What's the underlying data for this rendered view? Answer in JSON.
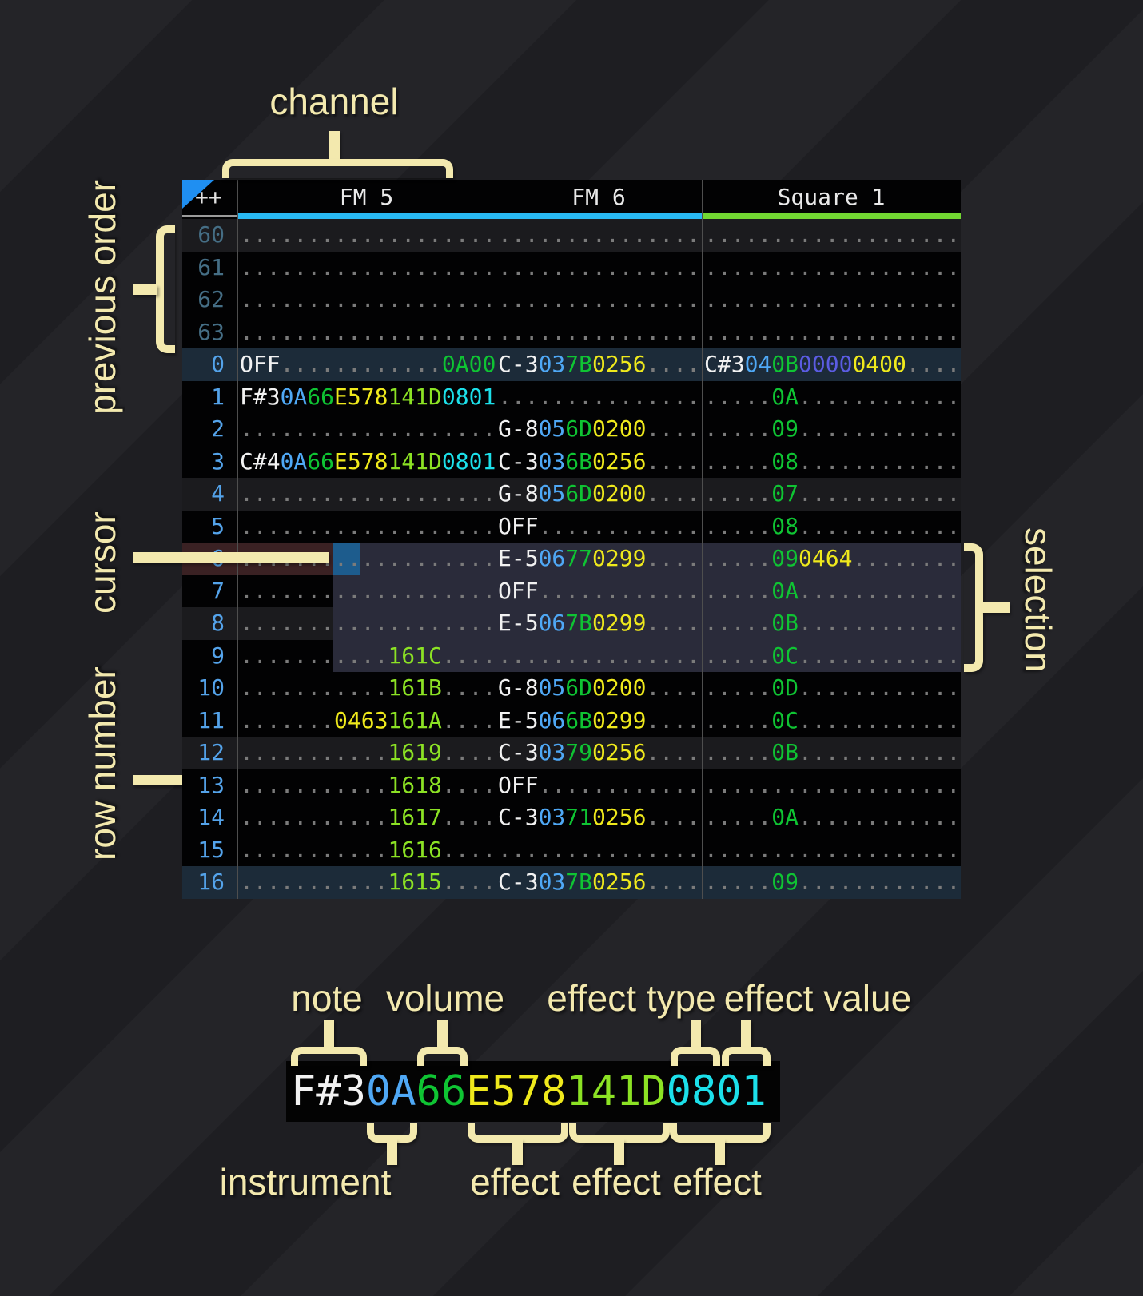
{
  "header": {
    "order_label": "++",
    "channels": [
      {
        "label": "FM 5",
        "type": "fm"
      },
      {
        "label": "FM 6",
        "type": "fm"
      },
      {
        "label": "Square 1",
        "type": "square"
      }
    ]
  },
  "state": {
    "cursor_row": "6",
    "cursor_channel": "FM 5",
    "cursor_field": "effect type",
    "selection_start_row": "6",
    "selection_end_row": "9"
  },
  "annotations": {
    "channel": "channel",
    "previous_order": "previous order",
    "cursor": "cursor",
    "row_number": "row number",
    "selection": "selection",
    "note": "note",
    "volume": "volume",
    "effect_type": "effect type",
    "effect_value": "effect value",
    "instrument": "instrument",
    "effect": "effect"
  },
  "zoom_cell": {
    "segments": [
      [
        "F#3",
        "n"
      ],
      [
        "0A",
        "i"
      ],
      [
        "66",
        "v"
      ],
      [
        "E578",
        "y"
      ],
      [
        "141D",
        "g"
      ],
      [
        "0801",
        "c"
      ]
    ]
  },
  "colors": {
    "channel_fm": "#29b9f2",
    "channel_square": "#72d732",
    "cursor": "#1d5c8d",
    "selection": "#2a2b3a",
    "cursor_row": "#3a2123",
    "row_highlight_major": "#1c2b39",
    "row_highlight_minor": "#1b1b1e",
    "annotation": "#f3e9ae",
    "note": "#f2f2f2",
    "instrument": "#4fa8f5",
    "volume": "#0fc433",
    "effect_pitch": "#efe91c",
    "effect_chip": "#8ce224",
    "effect_panning": "#1ce0ea",
    "effect_arpeggio": "#5b5ce2",
    "empty_dot": "#7b7b7b",
    "row_number_previous": "#456e85",
    "row_number_current": "#54a3ea"
  },
  "pattern": {
    "rows": [
      {
        "n": "60",
        "t": "prev",
        "hl": "weak",
        "ch": [
          [
            [
              "...................",
              "d"
            ]
          ],
          [
            [
              "...............",
              "d"
            ]
          ],
          [
            [
              "...................",
              "d"
            ]
          ]
        ]
      },
      {
        "n": "61",
        "t": "prev",
        "hl": "",
        "ch": [
          [
            [
              "...................",
              "d"
            ]
          ],
          [
            [
              "...............",
              "d"
            ]
          ],
          [
            [
              "...................",
              "d"
            ]
          ]
        ]
      },
      {
        "n": "62",
        "t": "prev",
        "hl": "",
        "ch": [
          [
            [
              "...................",
              "d"
            ]
          ],
          [
            [
              "...............",
              "d"
            ]
          ],
          [
            [
              "...................",
              "d"
            ]
          ]
        ]
      },
      {
        "n": "63",
        "t": "prev",
        "hl": "",
        "ch": [
          [
            [
              "...................",
              "d"
            ]
          ],
          [
            [
              "...............",
              "d"
            ]
          ],
          [
            [
              "...................",
              "d"
            ]
          ]
        ]
      },
      {
        "n": "0",
        "t": "cur",
        "hl": "strong",
        "ch": [
          [
            [
              "OFF",
              "n"
            ],
            [
              "............",
              "d"
            ],
            [
              "0A00",
              "v"
            ]
          ],
          [
            [
              "C-3",
              "n"
            ],
            [
              "03",
              "i"
            ],
            [
              "7B",
              "v"
            ],
            [
              "0256",
              "y"
            ],
            [
              "....",
              "d"
            ]
          ],
          [
            [
              "C#3",
              "n"
            ],
            [
              "04",
              "i"
            ],
            [
              "0B",
              "v"
            ],
            [
              "0000",
              "p"
            ],
            [
              "0400",
              "y"
            ],
            [
              "....",
              "d"
            ]
          ]
        ]
      },
      {
        "n": "1",
        "t": "cur",
        "hl": "",
        "ch": [
          [
            [
              "F#3",
              "n"
            ],
            [
              "0A",
              "i"
            ],
            [
              "66",
              "v"
            ],
            [
              "E578",
              "y"
            ],
            [
              "141D",
              "g"
            ],
            [
              "0801",
              "c"
            ]
          ],
          [
            [
              "...............",
              "d"
            ]
          ],
          [
            [
              ".....",
              "d"
            ],
            [
              "0A",
              "v"
            ],
            [
              "............",
              "d"
            ]
          ]
        ]
      },
      {
        "n": "2",
        "t": "cur",
        "hl": "",
        "ch": [
          [
            [
              "...................",
              "d"
            ]
          ],
          [
            [
              "G-8",
              "n"
            ],
            [
              "05",
              "i"
            ],
            [
              "6D",
              "v"
            ],
            [
              "0200",
              "y"
            ],
            [
              "....",
              "d"
            ]
          ],
          [
            [
              ".....",
              "d"
            ],
            [
              "09",
              "v"
            ],
            [
              "............",
              "d"
            ]
          ]
        ]
      },
      {
        "n": "3",
        "t": "cur",
        "hl": "",
        "ch": [
          [
            [
              "C#4",
              "n"
            ],
            [
              "0A",
              "i"
            ],
            [
              "66",
              "v"
            ],
            [
              "E578",
              "y"
            ],
            [
              "141D",
              "g"
            ],
            [
              "0801",
              "c"
            ]
          ],
          [
            [
              "C-3",
              "n"
            ],
            [
              "03",
              "i"
            ],
            [
              "6B",
              "v"
            ],
            [
              "0256",
              "y"
            ],
            [
              "....",
              "d"
            ]
          ],
          [
            [
              ".....",
              "d"
            ],
            [
              "08",
              "v"
            ],
            [
              "............",
              "d"
            ]
          ]
        ]
      },
      {
        "n": "4",
        "t": "cur",
        "hl": "weak",
        "ch": [
          [
            [
              "...................",
              "d"
            ]
          ],
          [
            [
              "G-8",
              "n"
            ],
            [
              "05",
              "i"
            ],
            [
              "6D",
              "v"
            ],
            [
              "0200",
              "y"
            ],
            [
              "....",
              "d"
            ]
          ],
          [
            [
              ".....",
              "d"
            ],
            [
              "07",
              "v"
            ],
            [
              "............",
              "d"
            ]
          ]
        ]
      },
      {
        "n": "5",
        "t": "cur",
        "hl": "",
        "ch": [
          [
            [
              "...................",
              "d"
            ]
          ],
          [
            [
              "OFF",
              "n"
            ],
            [
              "............",
              "d"
            ]
          ],
          [
            [
              ".....",
              "d"
            ],
            [
              "08",
              "v"
            ],
            [
              "............",
              "d"
            ]
          ]
        ]
      },
      {
        "n": "6",
        "t": "cur",
        "hl": "",
        "ch": [
          [
            [
              "...................",
              "d"
            ]
          ],
          [
            [
              "E-5",
              "n"
            ],
            [
              "06",
              "i"
            ],
            [
              "77",
              "v"
            ],
            [
              "0299",
              "y"
            ],
            [
              "....",
              "d"
            ]
          ],
          [
            [
              ".....",
              "d"
            ],
            [
              "09",
              "v"
            ],
            [
              "0464",
              "y"
            ],
            [
              "........",
              "d"
            ]
          ]
        ]
      },
      {
        "n": "7",
        "t": "cur",
        "hl": "",
        "ch": [
          [
            [
              "...................",
              "d"
            ]
          ],
          [
            [
              "OFF",
              "n"
            ],
            [
              "............",
              "d"
            ]
          ],
          [
            [
              ".....",
              "d"
            ],
            [
              "0A",
              "v"
            ],
            [
              "............",
              "d"
            ]
          ]
        ]
      },
      {
        "n": "8",
        "t": "cur",
        "hl": "weak",
        "ch": [
          [
            [
              "...................",
              "d"
            ]
          ],
          [
            [
              "E-5",
              "n"
            ],
            [
              "06",
              "i"
            ],
            [
              "7B",
              "v"
            ],
            [
              "0299",
              "y"
            ],
            [
              "....",
              "d"
            ]
          ],
          [
            [
              ".....",
              "d"
            ],
            [
              "0B",
              "v"
            ],
            [
              "............",
              "d"
            ]
          ]
        ]
      },
      {
        "n": "9",
        "t": "cur",
        "hl": "",
        "ch": [
          [
            [
              "...........",
              "d"
            ],
            [
              "161C",
              "g"
            ],
            [
              "....",
              "d"
            ]
          ],
          [
            [
              "...............",
              "d"
            ]
          ],
          [
            [
              ".....",
              "d"
            ],
            [
              "0C",
              "v"
            ],
            [
              "............",
              "d"
            ]
          ]
        ]
      },
      {
        "n": "10",
        "t": "cur",
        "hl": "",
        "ch": [
          [
            [
              "...........",
              "d"
            ],
            [
              "161B",
              "g"
            ],
            [
              "....",
              "d"
            ]
          ],
          [
            [
              "G-8",
              "n"
            ],
            [
              "05",
              "i"
            ],
            [
              "6D",
              "v"
            ],
            [
              "0200",
              "y"
            ],
            [
              "....",
              "d"
            ]
          ],
          [
            [
              ".....",
              "d"
            ],
            [
              "0D",
              "v"
            ],
            [
              "............",
              "d"
            ]
          ]
        ]
      },
      {
        "n": "11",
        "t": "cur",
        "hl": "",
        "ch": [
          [
            [
              ".......",
              "d"
            ],
            [
              "0463",
              "y"
            ],
            [
              "161A",
              "g"
            ],
            [
              "....",
              "d"
            ]
          ],
          [
            [
              "E-5",
              "n"
            ],
            [
              "06",
              "i"
            ],
            [
              "6B",
              "v"
            ],
            [
              "0299",
              "y"
            ],
            [
              "....",
              "d"
            ]
          ],
          [
            [
              ".....",
              "d"
            ],
            [
              "0C",
              "v"
            ],
            [
              "............",
              "d"
            ]
          ]
        ]
      },
      {
        "n": "12",
        "t": "cur",
        "hl": "weak",
        "ch": [
          [
            [
              "...........",
              "d"
            ],
            [
              "1619",
              "g"
            ],
            [
              "....",
              "d"
            ]
          ],
          [
            [
              "C-3",
              "n"
            ],
            [
              "03",
              "i"
            ],
            [
              "79",
              "v"
            ],
            [
              "0256",
              "y"
            ],
            [
              "....",
              "d"
            ]
          ],
          [
            [
              ".....",
              "d"
            ],
            [
              "0B",
              "v"
            ],
            [
              "............",
              "d"
            ]
          ]
        ]
      },
      {
        "n": "13",
        "t": "cur",
        "hl": "",
        "ch": [
          [
            [
              "...........",
              "d"
            ],
            [
              "1618",
              "g"
            ],
            [
              "....",
              "d"
            ]
          ],
          [
            [
              "OFF",
              "n"
            ],
            [
              "............",
              "d"
            ]
          ],
          [
            [
              "...................",
              "d"
            ]
          ]
        ]
      },
      {
        "n": "14",
        "t": "cur",
        "hl": "",
        "ch": [
          [
            [
              "...........",
              "d"
            ],
            [
              "1617",
              "g"
            ],
            [
              "....",
              "d"
            ]
          ],
          [
            [
              "C-3",
              "n"
            ],
            [
              "03",
              "i"
            ],
            [
              "71",
              "v"
            ],
            [
              "0256",
              "y"
            ],
            [
              "....",
              "d"
            ]
          ],
          [
            [
              ".....",
              "d"
            ],
            [
              "0A",
              "v"
            ],
            [
              "............",
              "d"
            ]
          ]
        ]
      },
      {
        "n": "15",
        "t": "cur",
        "hl": "",
        "ch": [
          [
            [
              "...........",
              "d"
            ],
            [
              "1616",
              "g"
            ],
            [
              "....",
              "d"
            ]
          ],
          [
            [
              "...............",
              "d"
            ]
          ],
          [
            [
              "...................",
              "d"
            ]
          ]
        ]
      },
      {
        "n": "16",
        "t": "cur",
        "hl": "strong",
        "ch": [
          [
            [
              "...........",
              "d"
            ],
            [
              "1615",
              "g"
            ],
            [
              "....",
              "d"
            ]
          ],
          [
            [
              "C-3",
              "n"
            ],
            [
              "03",
              "i"
            ],
            [
              "7B",
              "v"
            ],
            [
              "0256",
              "y"
            ],
            [
              "....",
              "d"
            ]
          ],
          [
            [
              ".....",
              "d"
            ],
            [
              "09",
              "v"
            ],
            [
              "............",
              "d"
            ]
          ]
        ]
      }
    ]
  }
}
